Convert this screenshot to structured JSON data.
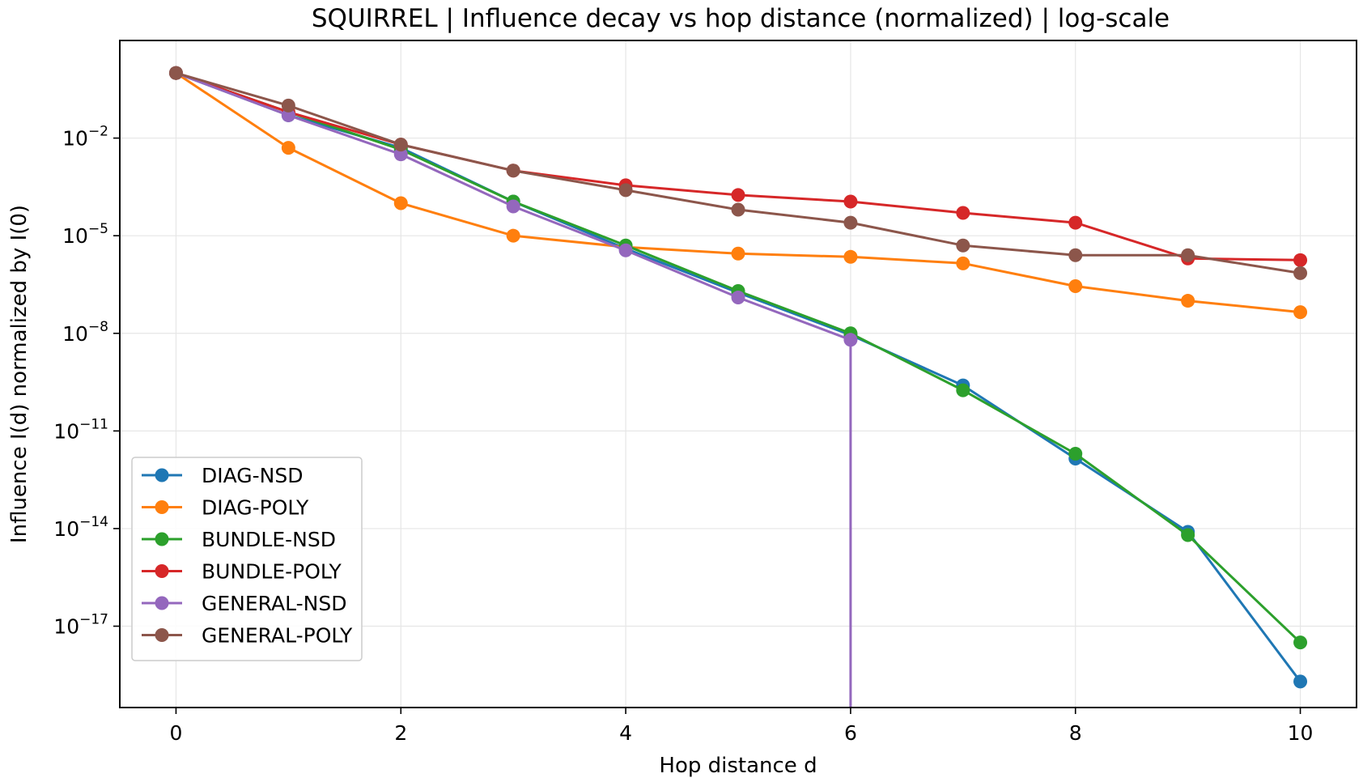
{
  "chart_data": {
    "type": "line",
    "title": "SQUIRREL | Influence decay vs hop distance (normalized) | log-scale",
    "xlabel": "Hop distance d",
    "ylabel": "Influence I(d) normalized by I(0)",
    "x": [
      0,
      1,
      2,
      3,
      4,
      5,
      6,
      7,
      8,
      9,
      10
    ],
    "xlim": [
      -0.5,
      10.5
    ],
    "ylim_log10": [
      -19.5,
      1.0
    ],
    "yscale": "log",
    "x_ticks": [
      "0",
      "2",
      "4",
      "6",
      "8",
      "10"
    ],
    "y_ticks": [
      {
        "base": "10",
        "exp": "−2"
      },
      {
        "base": "10",
        "exp": "−5"
      },
      {
        "base": "10",
        "exp": "−8"
      },
      {
        "base": "10",
        "exp": "−11"
      },
      {
        "base": "10",
        "exp": "−14"
      },
      {
        "base": "10",
        "exp": "−17"
      }
    ],
    "grid": true,
    "legend_position": "lower-left",
    "series": [
      {
        "name": "DIAG-NSD",
        "color": "#1f77b4",
        "log10_values": [
          0,
          -1.3,
          -2.3,
          -3.95,
          -5.4,
          -6.75,
          -8.05,
          -9.6,
          -11.85,
          -14.1,
          -18.7
        ]
      },
      {
        "name": "DIAG-POLY",
        "color": "#ff7f0e",
        "log10_values": [
          0,
          -2.3,
          -4.0,
          -5.0,
          -5.35,
          -5.55,
          -5.65,
          -5.85,
          -6.55,
          -7.0,
          -7.35
        ]
      },
      {
        "name": "BUNDLE-NSD",
        "color": "#2ca02c",
        "log10_values": [
          0,
          -1.2,
          -2.35,
          -3.95,
          -5.3,
          -6.7,
          -8.0,
          -9.75,
          -11.7,
          -14.2,
          -17.5
        ]
      },
      {
        "name": "BUNDLE-POLY",
        "color": "#d62728",
        "log10_values": [
          0,
          -1.2,
          -2.2,
          -3.0,
          -3.45,
          -3.75,
          -3.95,
          -4.3,
          -4.6,
          -5.7,
          -5.75
        ]
      },
      {
        "name": "GENERAL-NSD",
        "color": "#9467bd",
        "log10_values": [
          0,
          -1.3,
          -2.5,
          -4.1,
          -5.45,
          -6.9,
          -8.2,
          null,
          null,
          null,
          null
        ]
      },
      {
        "name": "GENERAL-POLY",
        "color": "#8c564b",
        "log10_values": [
          0,
          -1.0,
          -2.2,
          -3.0,
          -3.6,
          -4.2,
          -4.6,
          -5.3,
          -5.6,
          -5.6,
          -6.15
        ]
      }
    ]
  }
}
